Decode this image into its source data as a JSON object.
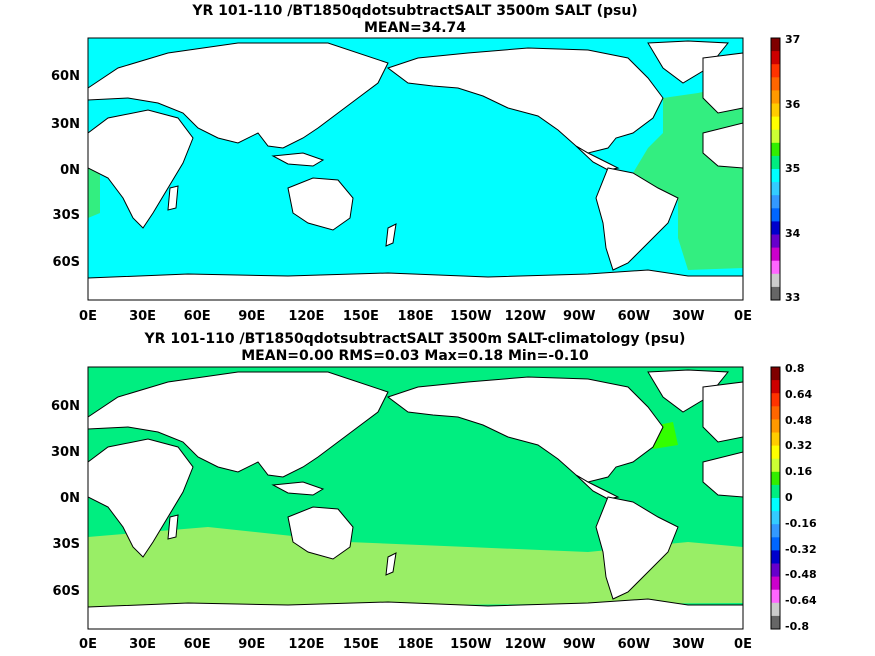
{
  "panels": [
    {
      "title_line1": "YR 101-110 /BT1850qdotsubtractSALT 3500m SALT (psu)",
      "title_line2": "MEAN=34.74",
      "ocean_color": "#00ffff",
      "colorbar_labels": [
        "37",
        "36",
        "35",
        "34",
        "33"
      ]
    },
    {
      "title_line1": "YR 101-110 /BT1850qdotsubtractSALT 3500m SALT-climatology (psu)",
      "title_line2": "MEAN=0.00   RMS=0.03   Max=0.18   Min=-0.10",
      "ocean_color": "#00ee80",
      "colorbar_labels": [
        "0.8",
        "0.64",
        "0.48",
        "0.32",
        "0.16",
        "0",
        "-0.16",
        "-0.32",
        "-0.48",
        "-0.64",
        "-0.8"
      ]
    }
  ],
  "lat_labels": [
    "60N",
    "30N",
    "0N",
    "30S",
    "60S"
  ],
  "lon_labels": [
    "0E",
    "30E",
    "60E",
    "90E",
    "120E",
    "150E",
    "180E",
    "150W",
    "120W",
    "90W",
    "60W",
    "30W",
    "0E"
  ],
  "colorbar_colors": [
    "#7f0000",
    "#cc0000",
    "#ff3300",
    "#ff6600",
    "#ff9900",
    "#ffcc00",
    "#ffff00",
    "#ccff33",
    "#33ee00",
    "#00ee80",
    "#00ffff",
    "#33ccff",
    "#3399ff",
    "#0066ff",
    "#0000cc",
    "#6600cc",
    "#cc00cc",
    "#ff66ff",
    "#cccccc",
    "#666666"
  ]
}
